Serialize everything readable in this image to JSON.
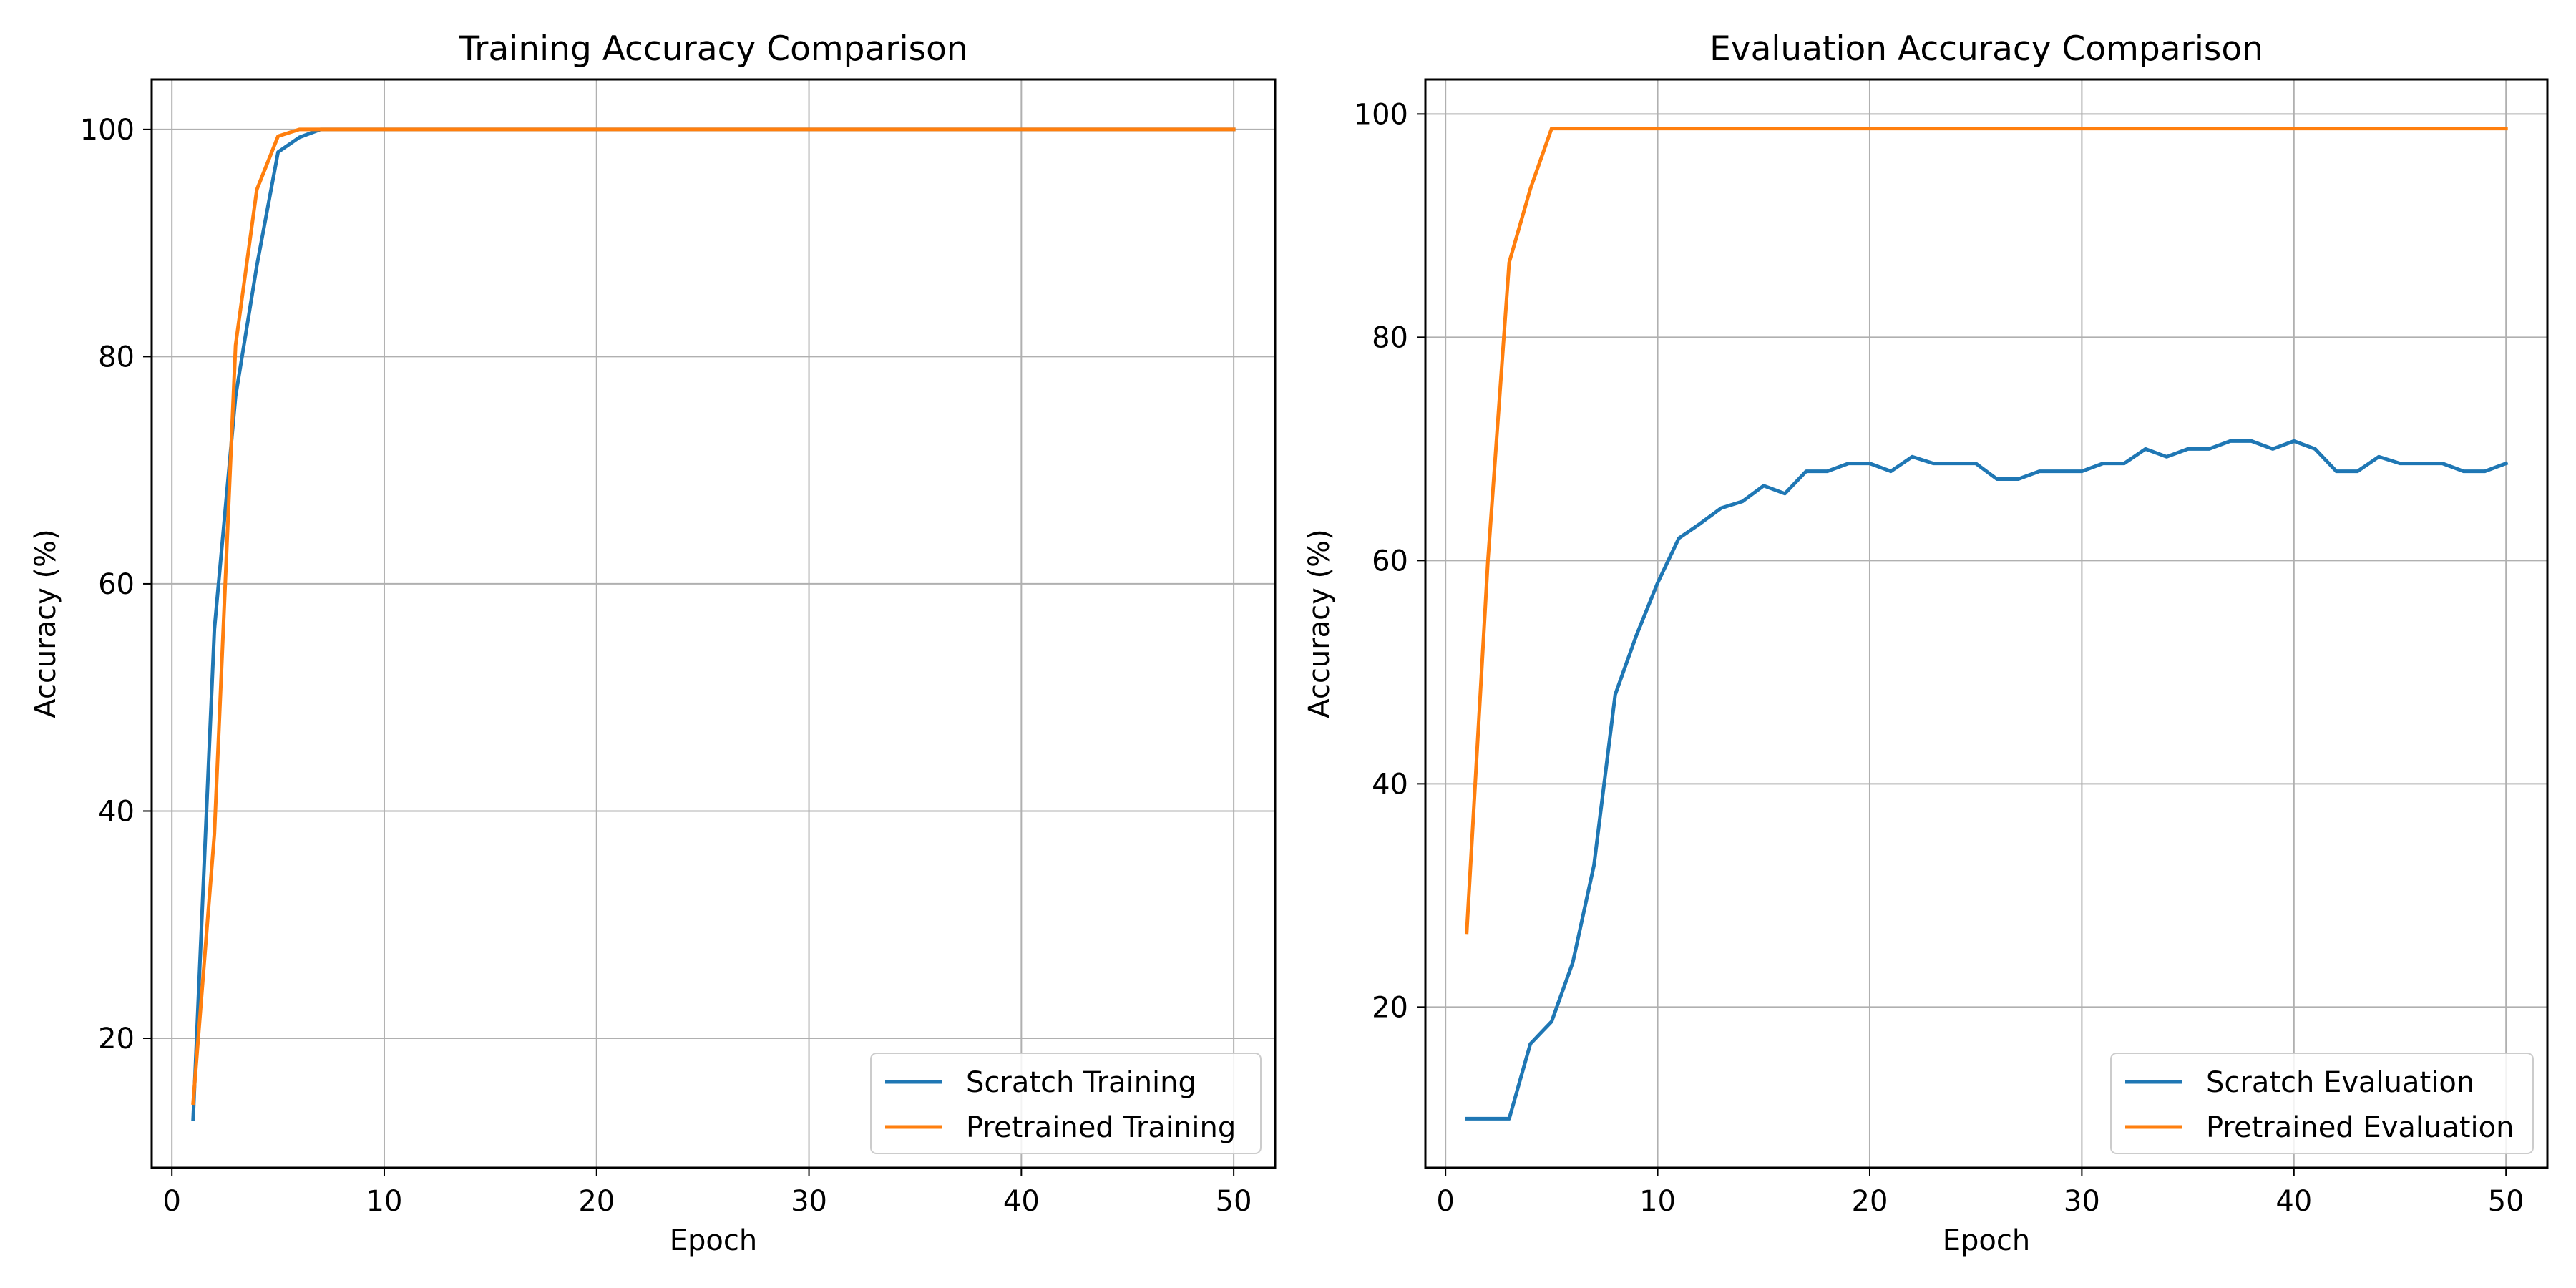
{
  "colors": {
    "scratch": "#1f77b4",
    "pretrained": "#ff7f0e",
    "grid": "#b0b0b0",
    "axes": "#000000"
  },
  "chart_data": [
    {
      "type": "line",
      "title": "Training Accuracy Comparison",
      "xlabel": "Epoch",
      "ylabel": "Accuracy (%)",
      "xlim": [
        -0.95,
        51.95
      ],
      "ylim": [
        8.6,
        104.4
      ],
      "xticks": [
        0,
        10,
        20,
        30,
        40,
        50
      ],
      "yticks": [
        20,
        40,
        60,
        80,
        100
      ],
      "grid": true,
      "legend_position": "lower-right",
      "series": [
        {
          "name": "Scratch Training",
          "color": "#1f77b4",
          "x": [
            1,
            2,
            3,
            4,
            5,
            6,
            7,
            8,
            9,
            10,
            11,
            12,
            13,
            14,
            15,
            16,
            17,
            18,
            19,
            20,
            21,
            22,
            23,
            24,
            25,
            26,
            27,
            28,
            29,
            30,
            31,
            32,
            33,
            34,
            35,
            36,
            37,
            38,
            39,
            40,
            41,
            42,
            43,
            44,
            45,
            46,
            47,
            48,
            49,
            50
          ],
          "values": [
            12.9,
            56.0,
            76.5,
            88.0,
            98.0,
            99.3,
            100,
            100,
            100,
            100,
            100,
            100,
            100,
            100,
            100,
            100,
            100,
            100,
            100,
            100,
            100,
            100,
            100,
            100,
            100,
            100,
            100,
            100,
            100,
            100,
            100,
            100,
            100,
            100,
            100,
            100,
            100,
            100,
            100,
            100,
            100,
            100,
            100,
            100,
            100,
            100,
            100,
            100,
            100,
            100
          ]
        },
        {
          "name": "Pretrained Training",
          "color": "#ff7f0e",
          "x": [
            1,
            2,
            3,
            4,
            5,
            6,
            7,
            8,
            9,
            10,
            11,
            12,
            13,
            14,
            15,
            16,
            17,
            18,
            19,
            20,
            21,
            22,
            23,
            24,
            25,
            26,
            27,
            28,
            29,
            30,
            31,
            32,
            33,
            34,
            35,
            36,
            37,
            38,
            39,
            40,
            41,
            42,
            43,
            44,
            45,
            46,
            47,
            48,
            49,
            50
          ],
          "values": [
            14.3,
            38.0,
            81.0,
            94.7,
            99.4,
            100,
            100,
            100,
            100,
            100,
            100,
            100,
            100,
            100,
            100,
            100,
            100,
            100,
            100,
            100,
            100,
            100,
            100,
            100,
            100,
            100,
            100,
            100,
            100,
            100,
            100,
            100,
            100,
            100,
            100,
            100,
            100,
            100,
            100,
            100,
            100,
            100,
            100,
            100,
            100,
            100,
            100,
            100,
            100,
            100
          ]
        }
      ]
    },
    {
      "type": "line",
      "title": "Evaluation Accuracy Comparison",
      "xlabel": "Epoch",
      "ylabel": "Accuracy (%)",
      "xlim": [
        -0.95,
        51.95
      ],
      "ylim": [
        5.6,
        103.1
      ],
      "xticks": [
        0,
        10,
        20,
        30,
        40,
        50
      ],
      "yticks": [
        20,
        40,
        60,
        80,
        100
      ],
      "grid": true,
      "legend_position": "lower-right",
      "series": [
        {
          "name": "Scratch Evaluation",
          "color": "#1f77b4",
          "x": [
            1,
            2,
            3,
            4,
            5,
            6,
            7,
            8,
            9,
            10,
            11,
            12,
            13,
            14,
            15,
            16,
            17,
            18,
            19,
            20,
            21,
            22,
            23,
            24,
            25,
            26,
            27,
            28,
            29,
            30,
            31,
            32,
            33,
            34,
            35,
            36,
            37,
            38,
            39,
            40,
            41,
            42,
            43,
            44,
            45,
            46,
            47,
            48,
            49,
            50
          ],
          "values": [
            10.0,
            10.0,
            10.0,
            16.7,
            18.7,
            24.0,
            32.7,
            48.0,
            53.3,
            58.0,
            62.0,
            63.3,
            64.7,
            65.3,
            66.7,
            66.0,
            68.0,
            68.0,
            68.7,
            68.7,
            68.0,
            69.3,
            68.7,
            68.7,
            68.7,
            67.3,
            67.3,
            68.0,
            68.0,
            68.0,
            68.7,
            68.7,
            70.0,
            69.3,
            70.0,
            70.0,
            70.7,
            70.7,
            70.0,
            70.7,
            70.0,
            68.0,
            68.0,
            69.3,
            68.7,
            68.7,
            68.7,
            68.0,
            68.0,
            68.7
          ]
        },
        {
          "name": "Pretrained Evaluation",
          "color": "#ff7f0e",
          "x": [
            1,
            2,
            3,
            4,
            5,
            6,
            7,
            8,
            9,
            10,
            11,
            12,
            13,
            14,
            15,
            16,
            17,
            18,
            19,
            20,
            21,
            22,
            23,
            24,
            25,
            26,
            27,
            28,
            29,
            30,
            31,
            32,
            33,
            34,
            35,
            36,
            37,
            38,
            39,
            40,
            41,
            42,
            43,
            44,
            45,
            46,
            47,
            48,
            49,
            50
          ],
          "values": [
            26.7,
            60.0,
            86.7,
            93.3,
            98.7,
            98.7,
            98.7,
            98.7,
            98.7,
            98.7,
            98.7,
            98.7,
            98.7,
            98.7,
            98.7,
            98.7,
            98.7,
            98.7,
            98.7,
            98.7,
            98.7,
            98.7,
            98.7,
            98.7,
            98.7,
            98.7,
            98.7,
            98.7,
            98.7,
            98.7,
            98.7,
            98.7,
            98.7,
            98.7,
            98.7,
            98.7,
            98.7,
            98.7,
            98.7,
            98.7,
            98.7,
            98.7,
            98.7,
            98.7,
            98.7,
            98.7,
            98.7,
            98.7,
            98.7,
            98.7
          ]
        }
      ]
    }
  ]
}
